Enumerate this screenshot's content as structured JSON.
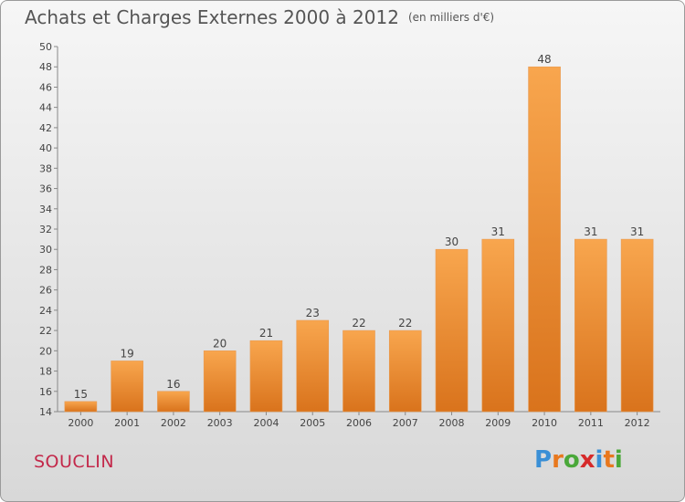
{
  "header": {
    "title": "Achats et Charges Externes 2000 à 2012",
    "unit": "(en milliers d'€)"
  },
  "footer": {
    "commune": "SOUCLIN",
    "logo_text": "Proxiti"
  },
  "colors": {
    "bar_light": "#f8a64e",
    "bar_dark": "#d9731c",
    "commune": "#c3284a",
    "logo": [
      "#3a8fd6",
      "#e8781e",
      "#4aa83a",
      "#d62a2a",
      "#3a8fd6",
      "#e8781e",
      "#4aa83a"
    ]
  },
  "chart_data": {
    "type": "bar",
    "title": "Achats et Charges Externes 2000 à 2012",
    "subtitle": "(en milliers d'€)",
    "categories": [
      "2000",
      "2001",
      "2002",
      "2003",
      "2004",
      "2005",
      "2006",
      "2007",
      "2008",
      "2009",
      "2010",
      "2011",
      "2012"
    ],
    "values": [
      15,
      19,
      16,
      20,
      21,
      23,
      22,
      22,
      30,
      31,
      48,
      31,
      31
    ],
    "ylim": [
      14,
      50
    ],
    "yticks": [
      14,
      16,
      18,
      20,
      22,
      24,
      26,
      28,
      30,
      32,
      34,
      36,
      38,
      40,
      42,
      44,
      46,
      48,
      50
    ],
    "grid": false,
    "data_labels": true
  }
}
